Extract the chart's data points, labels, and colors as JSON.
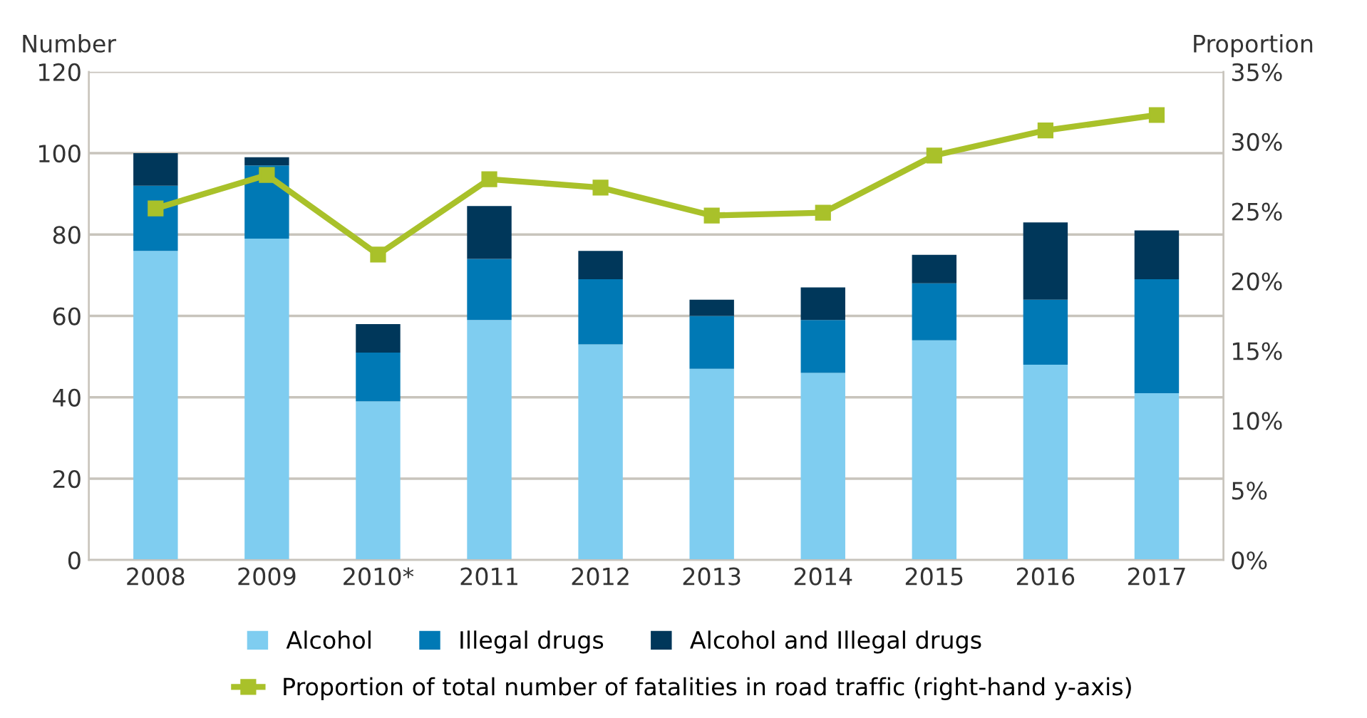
{
  "chart_data": {
    "type": "bar",
    "stacked": true,
    "ylabel": "Number",
    "y2label": "Proportion",
    "categories": [
      "2008",
      "2009",
      "2010*",
      "2011",
      "2012",
      "2013",
      "2014",
      "2015",
      "2016",
      "2017"
    ],
    "series": [
      {
        "name": "Alcohol",
        "color": "#7fcdf0",
        "values": [
          76,
          79,
          39,
          59,
          53,
          47,
          46,
          54,
          48,
          41
        ]
      },
      {
        "name": "Illegal drugs",
        "color": "#0079b5",
        "values": [
          16,
          18,
          12,
          15,
          16,
          13,
          13,
          14,
          16,
          28
        ]
      },
      {
        "name": "Alcohol and Illegal drugs",
        "color": "#00375a",
        "values": [
          8,
          2,
          7,
          13,
          7,
          4,
          8,
          7,
          19,
          12
        ]
      },
      {
        "name": "Proportion of total number of fatalities in road traffic (right-hand y-axis)",
        "type": "line",
        "axis": "y2",
        "color": "#a9c12a",
        "marker": "square",
        "values": [
          25.2,
          27.6,
          21.9,
          27.3,
          26.7,
          24.7,
          24.9,
          29.0,
          30.8,
          31.9
        ]
      }
    ],
    "ylim": [
      0,
      120
    ],
    "yticks": [
      0,
      20,
      40,
      60,
      80,
      100,
      120
    ],
    "y2lim": [
      0,
      35
    ],
    "y2ticks": [
      {
        "value": 0,
        "label": "0%"
      },
      {
        "value": 5,
        "label": "5%"
      },
      {
        "value": 10,
        "label": "10%"
      },
      {
        "value": 15,
        "label": "15%"
      },
      {
        "value": 20,
        "label": "20%"
      },
      {
        "value": 25,
        "label": "25%"
      },
      {
        "value": 30,
        "label": "30%"
      },
      {
        "value": 35,
        "label": "35%"
      }
    ],
    "grid": "y",
    "legend": "bottom"
  }
}
